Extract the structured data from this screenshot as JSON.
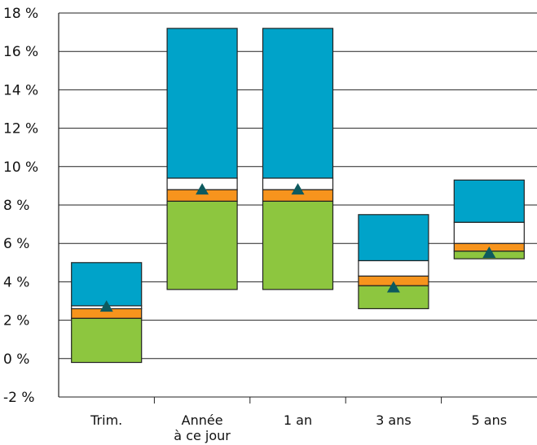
{
  "chart_data": {
    "type": "bar",
    "subtype": "floating-stacked-range",
    "categories": [
      "Trim.",
      "Année\nà ce jour",
      "1 an",
      "3 ans",
      "5 ans"
    ],
    "ylim": [
      -2,
      18
    ],
    "yticks": [
      -2,
      0,
      2,
      4,
      6,
      8,
      10,
      12,
      14,
      16,
      18
    ],
    "ytick_labels": [
      "-2 %",
      "0 %",
      "2 %",
      "4 %",
      "6 %",
      "8 %",
      "10 %",
      "12 %",
      "14 %",
      "16 %",
      "18 %"
    ],
    "grid": true,
    "segment_colors": [
      "#8dc63f",
      "#f7941d",
      "#ffffff",
      "#00a3c9"
    ],
    "marker_color": "#0d5a5f",
    "ranges": [
      {
        "category": "Trim.",
        "boundaries": [
          -0.2,
          2.1,
          2.6,
          2.75,
          5.0
        ],
        "marker": 2.7
      },
      {
        "category": "Année\nà ce jour",
        "boundaries": [
          3.6,
          8.2,
          8.8,
          9.4,
          17.2
        ],
        "marker": 8.8
      },
      {
        "category": "1 an",
        "boundaries": [
          3.6,
          8.2,
          8.8,
          9.4,
          17.2
        ],
        "marker": 8.8
      },
      {
        "category": "3 ans",
        "boundaries": [
          2.6,
          3.8,
          4.3,
          5.1,
          7.5
        ],
        "marker": 3.7
      },
      {
        "category": "5 ans",
        "boundaries": [
          5.2,
          5.6,
          6.0,
          7.1,
          9.3
        ],
        "marker": 5.5
      }
    ]
  }
}
